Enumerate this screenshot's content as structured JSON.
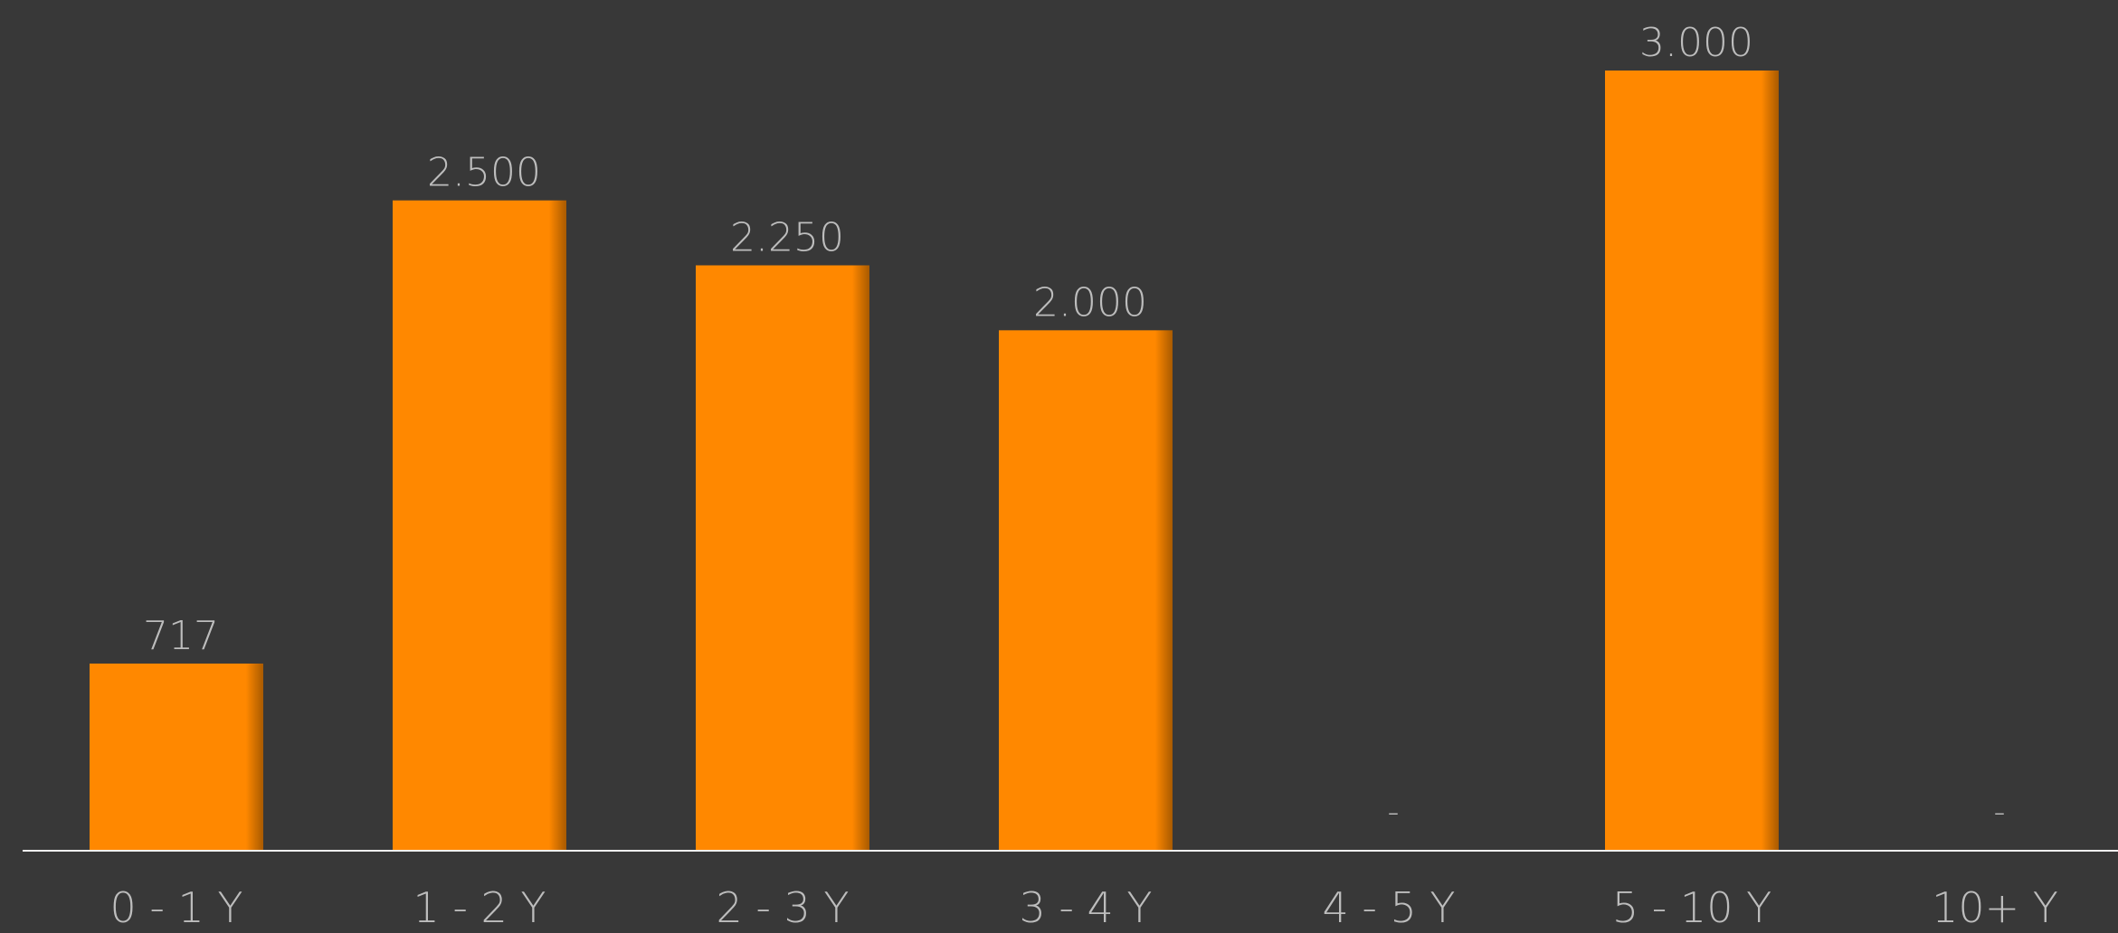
{
  "chart_data": {
    "type": "bar",
    "categories": [
      "0 - 1 Y",
      "1 - 2 Y",
      "2 - 3 Y",
      "3 - 4 Y",
      "4 - 5 Y",
      "5 - 10 Y",
      "10+ Y"
    ],
    "values": [
      717,
      2500,
      2250,
      2000,
      0,
      3000,
      0
    ],
    "data_labels": [
      "717",
      "2.500",
      "2.250",
      "2.000",
      "-",
      "3.000",
      "-"
    ],
    "title": "",
    "xlabel": "",
    "ylabel": "",
    "ylim": [
      0,
      3000
    ],
    "grid": false,
    "legend": "none",
    "colors": {
      "background": "#383838",
      "bar": "#ff8800",
      "bar_shadow": "#a85a00",
      "text": "#bdbdbd",
      "axis": "#f0f0f0"
    }
  }
}
